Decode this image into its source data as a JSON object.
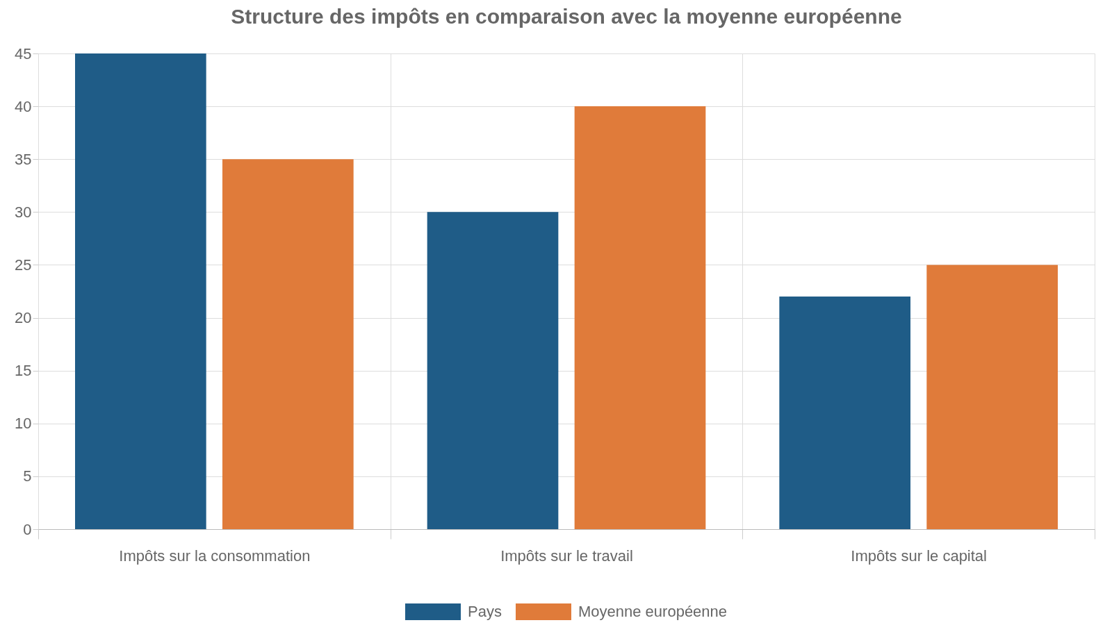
{
  "chart_data": {
    "type": "bar",
    "title": "Structure des impôts en comparaison avec la moyenne européenne",
    "categories": [
      "Impôts sur la consommation",
      "Impôts sur le travail",
      "Impôts sur le capital"
    ],
    "series": [
      {
        "name": "Pays",
        "color": "#1f5c87",
        "values": [
          45,
          30,
          22
        ]
      },
      {
        "name": "Moyenne européenne",
        "color": "#e07b3a",
        "values": [
          35,
          40,
          25
        ]
      }
    ],
    "ylim": [
      0,
      45
    ],
    "yticks": [
      0,
      5,
      10,
      15,
      20,
      25,
      30,
      35,
      40,
      45
    ],
    "grid": true,
    "legend": "bottom"
  }
}
